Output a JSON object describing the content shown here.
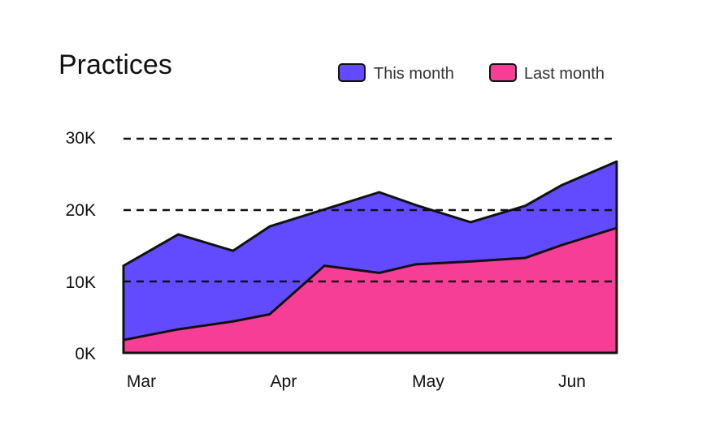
{
  "chart_data": {
    "type": "area",
    "title": "Practices",
    "xlabel": "",
    "ylabel": "",
    "x_ticks": [
      "Mar",
      "Apr",
      "May",
      "Jun"
    ],
    "x": [
      0,
      0.375,
      0.75,
      1.0,
      1.375,
      1.75,
      2.0,
      2.375,
      2.75,
      3.0,
      3.375
    ],
    "xlim": [
      0,
      3.375
    ],
    "ylim": [
      0,
      30000
    ],
    "y_ticks": [
      0,
      10000,
      20000,
      30000
    ],
    "y_tick_labels": [
      "0K",
      "10K",
      "20K",
      "30K"
    ],
    "grid": "dashed horizontal",
    "legend_position": "top-right",
    "series": [
      {
        "name": "This month",
        "color": "#624bff",
        "values": [
          12200,
          16600,
          14300,
          17700,
          20100,
          22500,
          20700,
          18300,
          20600,
          23500,
          26800
        ]
      },
      {
        "name": "Last month",
        "color": "#f73e96",
        "values": [
          1800,
          3300,
          4400,
          5400,
          12200,
          11200,
          12400,
          12800,
          13300,
          15100,
          17500
        ]
      }
    ]
  }
}
